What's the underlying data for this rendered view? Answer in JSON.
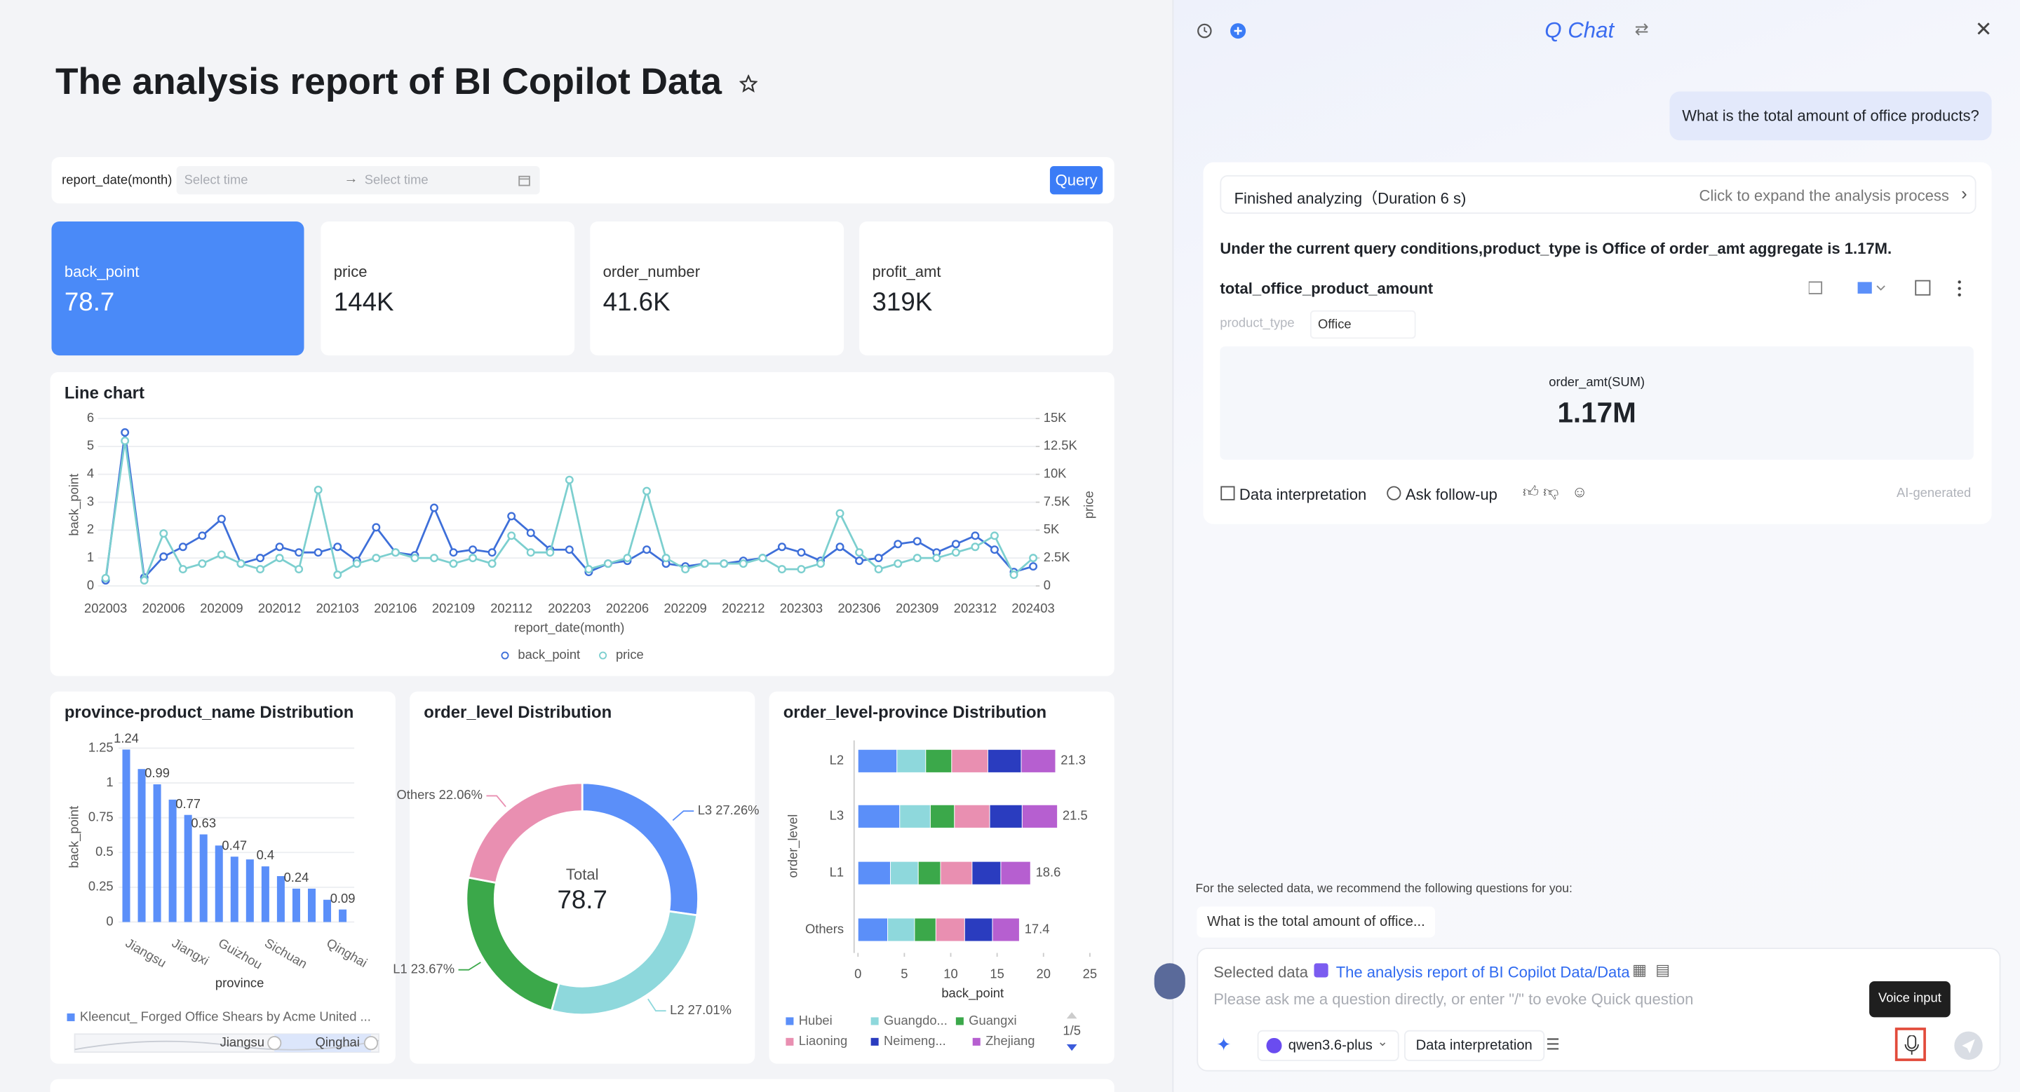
{
  "header": {
    "title": "The analysis report of BI Copilot Data"
  },
  "filter": {
    "label": "report_date(month)",
    "start_placeholder": "Select time",
    "end_placeholder": "Select time",
    "button": "Query"
  },
  "kpis": [
    {
      "label": "back_point",
      "value": "78.7"
    },
    {
      "label": "price",
      "value": "144K"
    },
    {
      "label": "order_number",
      "value": "41.6K"
    },
    {
      "label": "profit_amt",
      "value": "319K"
    }
  ],
  "line_chart": {
    "type": "line",
    "title": "Line chart",
    "x_label": "report_date(month)",
    "y_label": "back_point",
    "y2_label": "price",
    "categories": [
      "202003",
      null,
      null,
      "202006",
      null,
      null,
      "202009",
      null,
      null,
      "202012",
      null,
      null,
      "202103",
      null,
      null,
      "202106",
      null,
      null,
      "202109",
      null,
      null,
      "202112",
      null,
      null,
      "202203",
      null,
      null,
      "202206",
      null,
      null,
      "202209",
      null,
      null,
      "202212",
      null,
      null,
      "202303",
      null,
      null,
      "202306",
      null,
      null,
      "202309",
      null,
      null,
      "202312",
      null,
      null,
      "202403"
    ],
    "series": [
      {
        "name": "back_point",
        "color": "#3e6fd9",
        "values": [
          0.2,
          5.5,
          0.3,
          1.05,
          1.4,
          1.8,
          2.4,
          0.8,
          1.0,
          1.4,
          1.2,
          1.2,
          1.4,
          0.9,
          2.1,
          1.2,
          1.1,
          2.8,
          1.2,
          1.3,
          1.2,
          2.5,
          1.9,
          1.3,
          1.3,
          0.5,
          0.8,
          0.9,
          1.3,
          0.8,
          0.7,
          0.8,
          0.8,
          0.9,
          1.0,
          1.4,
          1.2,
          0.9,
          1.4,
          0.9,
          1.0,
          1.5,
          1.6,
          1.2,
          1.5,
          1.8,
          1.3,
          0.5,
          0.7
        ]
      },
      {
        "name": "price",
        "color": "#7ccfcf",
        "axis": "y2",
        "values": [
          700,
          13000,
          500,
          4700,
          1500,
          2000,
          2800,
          2000,
          1500,
          2500,
          1500,
          8600,
          1000,
          2000,
          2500,
          3000,
          2500,
          2500,
          2000,
          2500,
          2000,
          4500,
          3000,
          3000,
          9500,
          1500,
          2000,
          2500,
          8500,
          2500,
          1500,
          2000,
          2000,
          2000,
          2500,
          1500,
          1500,
          2000,
          6500,
          3000,
          1500,
          2000,
          2500,
          2500,
          3000,
          3500,
          4500,
          1000,
          2500
        ]
      }
    ],
    "ylim": [
      0,
      6
    ],
    "yticks": [
      0,
      1,
      2,
      3,
      4,
      5,
      6
    ],
    "y2lim": [
      0,
      15000
    ],
    "y2ticks": [
      0,
      {
        "value": 2500,
        "label": "2.5K"
      },
      {
        "value": 5000,
        "label": "5K"
      },
      {
        "value": 7500,
        "label": "7.5K"
      },
      {
        "value": 10000,
        "label": "10K"
      },
      {
        "value": 12500,
        "label": "12.5K"
      },
      {
        "value": 15000,
        "label": "15K"
      }
    ],
    "grid": true
  },
  "bar_chart": {
    "type": "bar",
    "title": "province-product_name Distribution",
    "x_label": "province",
    "y_label": "back_point",
    "categories": [
      null,
      "Jiangsu",
      null,
      null,
      "Jiangxi",
      null,
      null,
      "Guizhou",
      null,
      null,
      "Sichuan",
      null,
      null,
      null,
      "Qinghai"
    ],
    "series": [
      {
        "name": "Kleencut_ Forged Office Shears by Acme United ...",
        "color": "#5b8ff9",
        "values": [
          1.24,
          1.1,
          0.99,
          0.88,
          0.77,
          0.63,
          0.55,
          0.47,
          0.45,
          0.4,
          0.33,
          0.24,
          0.24,
          0.16,
          0.09
        ],
        "value_labels": [
          "1.24",
          null,
          "0.99",
          null,
          "0.77",
          "0.63",
          null,
          "0.47",
          null,
          "0.4",
          null,
          "0.24",
          null,
          null,
          "0.09"
        ]
      }
    ],
    "ylim": [
      0,
      1.25
    ],
    "yticks": [
      0,
      0.25,
      0.5,
      0.75,
      1,
      1.25
    ],
    "grid": true,
    "slider": [
      "Jiangsu",
      "Qinghai"
    ]
  },
  "donut_chart": {
    "type": "pie",
    "title": "order_level Distribution",
    "center_label": "Total",
    "center_value": "78.7",
    "categories": [
      "L3",
      "L2",
      "L1",
      "Others"
    ],
    "values": [
      27.26,
      27.01,
      23.67,
      22.06
    ],
    "value_labels": [
      "L3 27.26%",
      "L2 27.01%",
      "L1 23.67%",
      "Others 22.06%"
    ],
    "colors": [
      "#5b8ff9",
      "#8ed8dc",
      "#3ba84a",
      "#e98fb1"
    ]
  },
  "stacked_chart": {
    "type": "stacked_bar_horizontal",
    "title": "order_level-province Distribution",
    "x_label": "back_point",
    "y_label": "order_level",
    "categories": [
      "L2",
      "L3",
      "L1",
      "Others"
    ],
    "series": [
      {
        "name": "Hubei",
        "color": "#5b8ff9",
        "values": [
          4.2,
          4.5,
          3.5,
          3.2
        ]
      },
      {
        "name": "Guangdo...",
        "color": "#8ed8dc",
        "values": [
          3.1,
          3.3,
          3.0,
          2.9
        ]
      },
      {
        "name": "Guangxi",
        "color": "#3ba84a",
        "values": [
          2.8,
          2.6,
          2.4,
          2.3
        ]
      },
      {
        "name": "Liaoning",
        "color": "#e98fb1",
        "values": [
          3.9,
          3.8,
          3.4,
          3.1
        ]
      },
      {
        "name": "Neimeng...",
        "color": "#2a3cbf",
        "values": [
          3.6,
          3.5,
          3.1,
          3.0
        ]
      },
      {
        "name": "Zhejiang",
        "color": "#b65fd0",
        "values": [
          3.7,
          3.8,
          3.2,
          2.9
        ]
      }
    ],
    "totals": [
      21.3,
      21.5,
      18.6,
      17.4
    ],
    "xlim": [
      0,
      25
    ],
    "xticks": [
      0,
      5,
      10,
      15,
      20,
      25
    ],
    "legend_page": "1/5"
  },
  "chat": {
    "title": "Q Chat",
    "user_message": "What is the total amount of office products?",
    "status": "Finished analyzing（Duration 6 s)",
    "expand": "Click to expand the analysis process",
    "answer": "Under the current query conditions,product_type is Office of order_amt aggregate is 1.17M.",
    "result_title": "total_office_product_amount",
    "filter_label": "product_type",
    "filter_value": "Office",
    "metric_label": "order_amt(SUM)",
    "metric_value": "1.17M",
    "actions": [
      "Data interpretation",
      "Ask follow-up"
    ],
    "ai_note": "AI-generated",
    "recommend_intro": "For the selected data, we recommend the following questions for you:",
    "recommendations": [
      "What is the total amount of office..."
    ],
    "selected_label": "Selected data",
    "selected_value": "The analysis report of BI Copilot Data/Data",
    "placeholder": "Please ask me a question directly, or enter \"/\" to evoke Quick question",
    "model": "qwen3.6-plus",
    "mode": "Data interpretation",
    "tooltip": "Voice input"
  }
}
